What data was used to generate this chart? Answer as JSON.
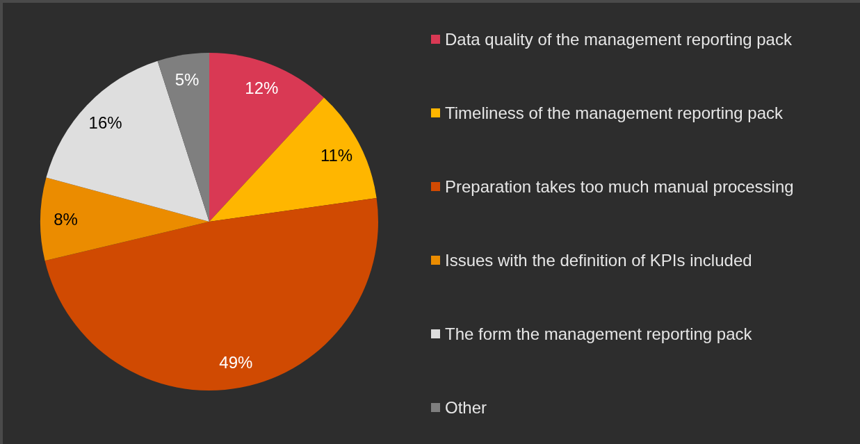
{
  "chart_data": {
    "type": "pie",
    "categories": [
      "Data quality of the management reporting pack",
      "Timeliness of the management reporting pack",
      "Preparation takes too much manual processing",
      "Issues with the definition of KPIs included",
      "The form the management reporting pack",
      "Other"
    ],
    "values": [
      12,
      11,
      49,
      8,
      16,
      5
    ],
    "colors": [
      "#d93954",
      "#ffb600",
      "#d04a02",
      "#eb8c00",
      "#dedede",
      "#7f7f7f"
    ],
    "value_labels": [
      "12%",
      "11%",
      "49%",
      "8%",
      "16%",
      "5%"
    ],
    "legend": "right"
  }
}
